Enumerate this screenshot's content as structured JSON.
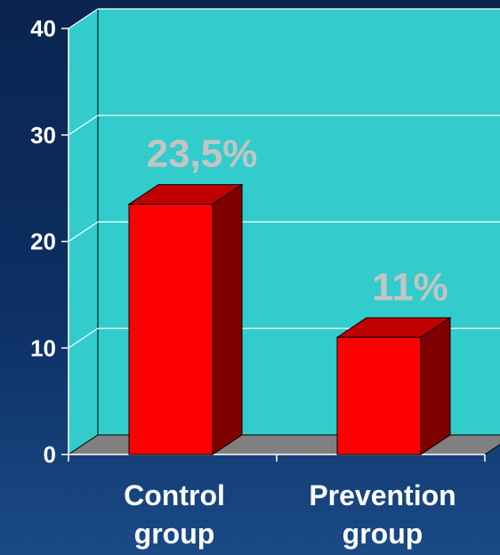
{
  "chart_data": {
    "type": "bar",
    "categories": [
      "Control\ngroup",
      "Prevention\ngroup"
    ],
    "values": [
      23.5,
      11
    ],
    "data_labels": [
      "23,5%",
      "11%"
    ],
    "ylim": [
      0,
      40
    ],
    "yticks": [
      0,
      10,
      20,
      30,
      40
    ],
    "title": "",
    "xlabel": "",
    "ylabel": "",
    "grid": true,
    "style": "3d",
    "colors": {
      "wall": "#33cccc",
      "floor": "#808080",
      "bar_front": "#ff0000",
      "bar_top": "#c00000",
      "bar_side": "#800000",
      "axis_text": "#ffffff",
      "data_label_text": "#c4c4c4"
    }
  }
}
